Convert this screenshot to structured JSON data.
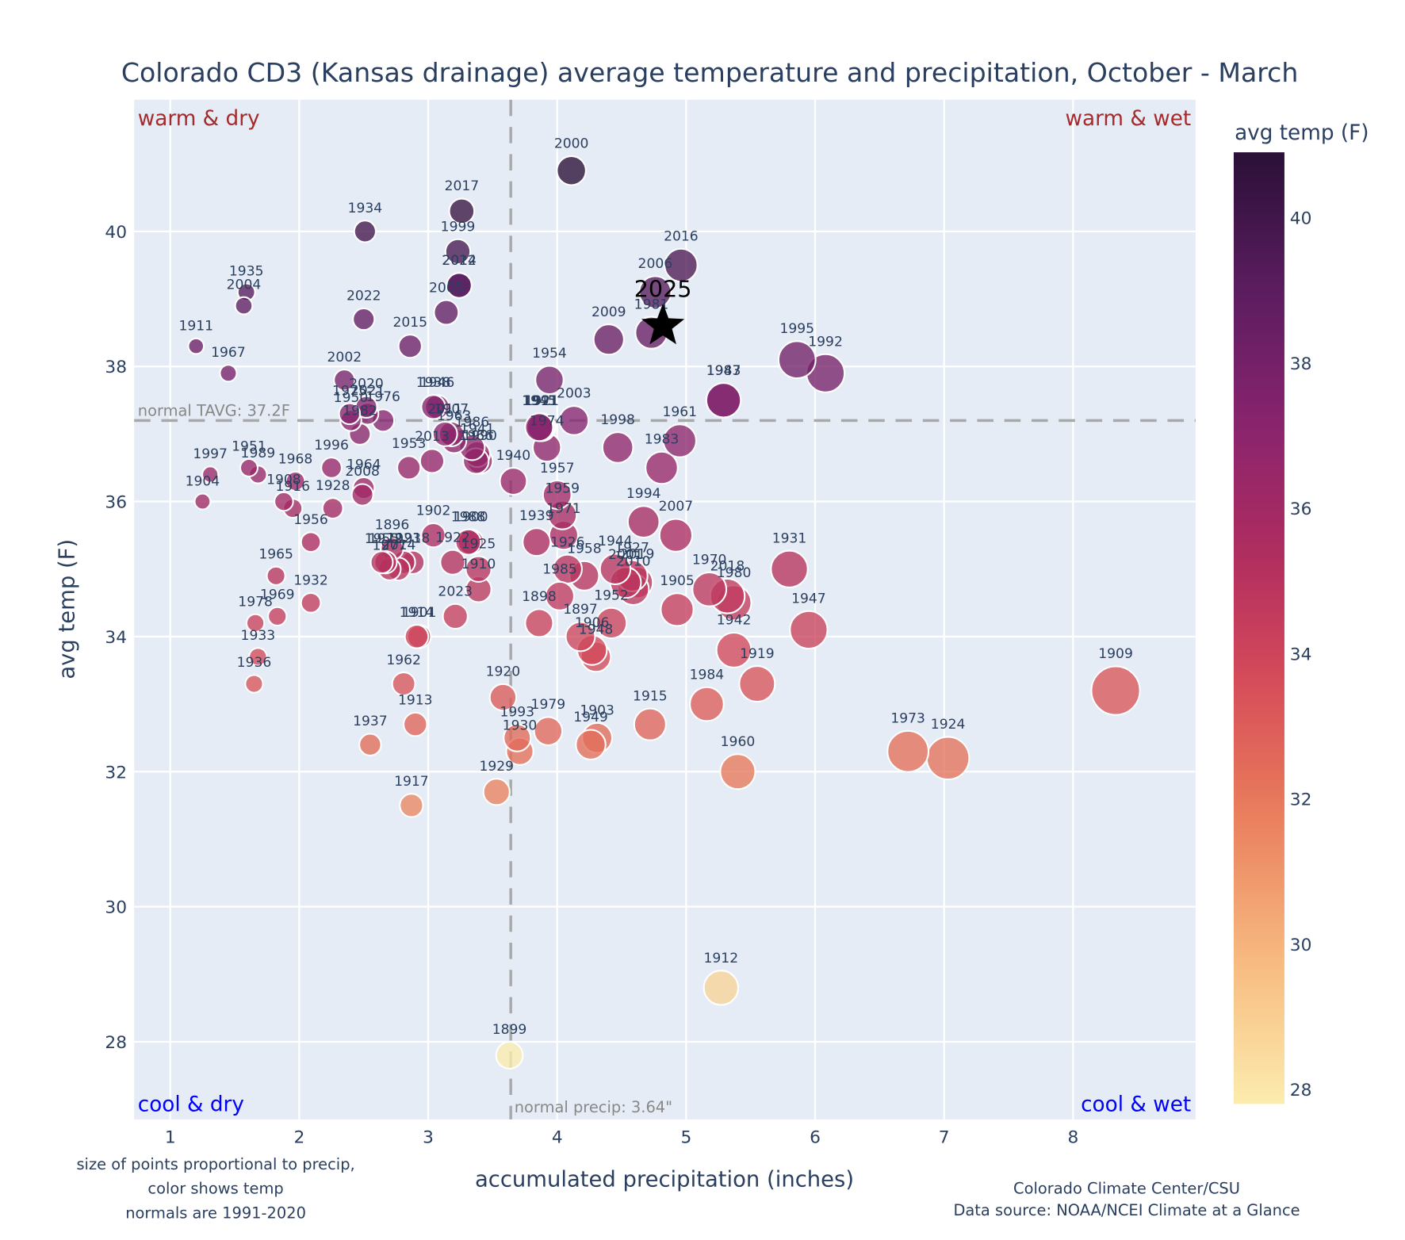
{
  "chart_data": {
    "type": "scatter",
    "title": "Colorado CD3 (Kansas drainage) average temperature and precipitation, October - March",
    "xlabel": "accumulated precipitation (inches)",
    "ylabel": "avg temp (F)",
    "xlim": [
      0.72,
      8.95
    ],
    "ylim": [
      26.85,
      41.95
    ],
    "x_ticks": [
      1,
      2,
      3,
      4,
      5,
      6,
      7,
      8
    ],
    "y_ticks": [
      28,
      30,
      32,
      34,
      36,
      38,
      40
    ],
    "grid": true,
    "size_encoding": "precip",
    "color_encoding": "avg temp",
    "colorscale": "magma-like (light yellow = cool, dark purple = warm)",
    "colorbar": {
      "title": "avg temp (F)",
      "range": [
        27.8,
        40.9
      ],
      "ticks": [
        28,
        30,
        32,
        34,
        36,
        38,
        40
      ],
      "placement": "right"
    },
    "reference_lines": {
      "normal_temp": 37.2,
      "normal_temp_label": "normal TAVG: 37.2F",
      "normal_precip": 3.64,
      "normal_precip_label": "normal precip: 3.64\""
    },
    "quadrant_labels": {
      "top_left": "warm & dry",
      "top_right": "warm & wet",
      "bottom_left": "cool & dry",
      "bottom_right": "cool & wet"
    },
    "highlight": {
      "year": "2025",
      "precip": 4.82,
      "temp": 38.6,
      "marker": "star"
    },
    "points": [
      {
        "year": "1896",
        "precip": 2.72,
        "temp": 35.3
      },
      {
        "year": "1897",
        "precip": 4.18,
        "temp": 34.0
      },
      {
        "year": "1898",
        "precip": 3.86,
        "temp": 34.2
      },
      {
        "year": "1899",
        "precip": 3.63,
        "temp": 27.8
      },
      {
        "year": "1900",
        "precip": 3.33,
        "temp": 35.4
      },
      {
        "year": "1901",
        "precip": 2.93,
        "temp": 34.0
      },
      {
        "year": "1902",
        "precip": 3.04,
        "temp": 35.5
      },
      {
        "year": "1903",
        "precip": 4.31,
        "temp": 32.5
      },
      {
        "year": "1904",
        "precip": 1.25,
        "temp": 36.0
      },
      {
        "year": "1905",
        "precip": 4.93,
        "temp": 34.4
      },
      {
        "year": "1906",
        "precip": 4.27,
        "temp": 33.8
      },
      {
        "year": "1907",
        "precip": 3.18,
        "temp": 37.0
      },
      {
        "year": "1908",
        "precip": 1.88,
        "temp": 36.0
      },
      {
        "year": "1909",
        "precip": 8.33,
        "temp": 33.2
      },
      {
        "year": "1910",
        "precip": 3.39,
        "temp": 34.7
      },
      {
        "year": "1911",
        "precip": 1.2,
        "temp": 38.3
      },
      {
        "year": "1912",
        "precip": 5.27,
        "temp": 28.8
      },
      {
        "year": "1913",
        "precip": 2.9,
        "temp": 32.7
      },
      {
        "year": "1914",
        "precip": 2.91,
        "temp": 34.0
      },
      {
        "year": "1915",
        "precip": 4.72,
        "temp": 32.7
      },
      {
        "year": "1916",
        "precip": 1.95,
        "temp": 35.9
      },
      {
        "year": "1917",
        "precip": 2.87,
        "temp": 31.5
      },
      {
        "year": "1918",
        "precip": 2.88,
        "temp": 35.1
      },
      {
        "year": "1919",
        "precip": 5.55,
        "temp": 33.3
      },
      {
        "year": "1920",
        "precip": 3.58,
        "temp": 33.1
      },
      {
        "year": "1921",
        "precip": 3.88,
        "temp": 37.1
      },
      {
        "year": "1922",
        "precip": 3.19,
        "temp": 35.1
      },
      {
        "year": "1923",
        "precip": 2.81,
        "temp": 35.1
      },
      {
        "year": "1924",
        "precip": 7.03,
        "temp": 32.2
      },
      {
        "year": "1925",
        "precip": 3.39,
        "temp": 35.0
      },
      {
        "year": "1926",
        "precip": 4.08,
        "temp": 35.0
      },
      {
        "year": "1927",
        "precip": 4.58,
        "temp": 34.9
      },
      {
        "year": "1928",
        "precip": 2.26,
        "temp": 35.9
      },
      {
        "year": "1929",
        "precip": 3.53,
        "temp": 31.7
      },
      {
        "year": "1930",
        "precip": 3.71,
        "temp": 32.3
      },
      {
        "year": "1931",
        "precip": 5.8,
        "temp": 35.0
      },
      {
        "year": "1932",
        "precip": 2.09,
        "temp": 34.5
      },
      {
        "year": "1933",
        "precip": 1.68,
        "temp": 33.7
      },
      {
        "year": "1934",
        "precip": 2.51,
        "temp": 40.0
      },
      {
        "year": "1935",
        "precip": 1.59,
        "temp": 39.1
      },
      {
        "year": "1936",
        "precip": 1.65,
        "temp": 33.3
      },
      {
        "year": "1937",
        "precip": 2.55,
        "temp": 32.4
      },
      {
        "year": "1938",
        "precip": 3.04,
        "temp": 37.4
      },
      {
        "year": "1939",
        "precip": 3.84,
        "temp": 35.4
      },
      {
        "year": "1940",
        "precip": 3.66,
        "temp": 36.3
      },
      {
        "year": "1941",
        "precip": 3.38,
        "temp": 36.7
      },
      {
        "year": "1942",
        "precip": 5.37,
        "temp": 33.8
      },
      {
        "year": "1943",
        "precip": 5.29,
        "temp": 37.5
      },
      {
        "year": "1944",
        "precip": 4.45,
        "temp": 35.0
      },
      {
        "year": "1945",
        "precip": 3.86,
        "temp": 37.1
      },
      {
        "year": "1946",
        "precip": 3.07,
        "temp": 37.4
      },
      {
        "year": "1947",
        "precip": 5.95,
        "temp": 34.1
      },
      {
        "year": "1948",
        "precip": 4.3,
        "temp": 33.7
      },
      {
        "year": "1949",
        "precip": 4.26,
        "temp": 32.4
      },
      {
        "year": "1950",
        "precip": 2.4,
        "temp": 37.2
      },
      {
        "year": "1951",
        "precip": 1.61,
        "temp": 36.5
      },
      {
        "year": "1952",
        "precip": 4.42,
        "temp": 34.2
      },
      {
        "year": "1953",
        "precip": 2.85,
        "temp": 36.5
      },
      {
        "year": "1954",
        "precip": 3.94,
        "temp": 37.8
      },
      {
        "year": "1955",
        "precip": 2.64,
        "temp": 35.1
      },
      {
        "year": "1956",
        "precip": 2.09,
        "temp": 35.4
      },
      {
        "year": "1957",
        "precip": 4.0,
        "temp": 36.1
      },
      {
        "year": "1958",
        "precip": 4.21,
        "temp": 34.9
      },
      {
        "year": "1959",
        "precip": 4.04,
        "temp": 35.8
      },
      {
        "year": "1960",
        "precip": 5.4,
        "temp": 32.0
      },
      {
        "year": "1961",
        "precip": 4.95,
        "temp": 36.9
      },
      {
        "year": "1962",
        "precip": 2.81,
        "temp": 33.3
      },
      {
        "year": "1963",
        "precip": 3.2,
        "temp": 36.9
      },
      {
        "year": "1964",
        "precip": 2.5,
        "temp": 36.2
      },
      {
        "year": "1965",
        "precip": 1.82,
        "temp": 34.9
      },
      {
        "year": "1966",
        "precip": 3.37,
        "temp": 36.6
      },
      {
        "year": "1967",
        "precip": 1.45,
        "temp": 37.9
      },
      {
        "year": "1968",
        "precip": 1.97,
        "temp": 36.3
      },
      {
        "year": "1969",
        "precip": 1.83,
        "temp": 34.3
      },
      {
        "year": "1970",
        "precip": 5.18,
        "temp": 34.7
      },
      {
        "year": "1971",
        "precip": 4.05,
        "temp": 35.5
      },
      {
        "year": "1972",
        "precip": 2.67,
        "temp": 35.1
      },
      {
        "year": "1973",
        "precip": 6.72,
        "temp": 32.3
      },
      {
        "year": "1974",
        "precip": 3.92,
        "temp": 36.8
      },
      {
        "year": "1975",
        "precip": 2.39,
        "temp": 37.3
      },
      {
        "year": "1976",
        "precip": 2.65,
        "temp": 37.2
      },
      {
        "year": "1977",
        "precip": 2.7,
        "temp": 35.0
      },
      {
        "year": "1978",
        "precip": 1.66,
        "temp": 34.2
      },
      {
        "year": "1979",
        "precip": 3.93,
        "temp": 32.6
      },
      {
        "year": "1980",
        "precip": 5.37,
        "temp": 34.5
      },
      {
        "year": "1981",
        "precip": 4.73,
        "temp": 38.5
      },
      {
        "year": "1982",
        "precip": 2.47,
        "temp": 37.0
      },
      {
        "year": "1983",
        "precip": 4.81,
        "temp": 36.5
      },
      {
        "year": "1984",
        "precip": 5.16,
        "temp": 33.0
      },
      {
        "year": "1985",
        "precip": 4.02,
        "temp": 34.6
      },
      {
        "year": "1986",
        "precip": 3.34,
        "temp": 36.8
      },
      {
        "year": "1987",
        "precip": 5.29,
        "temp": 37.5
      },
      {
        "year": "1988",
        "precip": 3.31,
        "temp": 35.4
      },
      {
        "year": "1989",
        "precip": 1.68,
        "temp": 36.4
      },
      {
        "year": "1990",
        "precip": 3.4,
        "temp": 36.6
      },
      {
        "year": "1991",
        "precip": 3.87,
        "temp": 37.1
      },
      {
        "year": "1992",
        "precip": 6.08,
        "temp": 37.9
      },
      {
        "year": "1993",
        "precip": 3.69,
        "temp": 32.5
      },
      {
        "year": "1994",
        "precip": 4.67,
        "temp": 35.7
      },
      {
        "year": "1995",
        "precip": 5.86,
        "temp": 38.1
      },
      {
        "year": "1996",
        "precip": 2.25,
        "temp": 36.5
      },
      {
        "year": "1997",
        "precip": 1.31,
        "temp": 36.4
      },
      {
        "year": "1998",
        "precip": 4.47,
        "temp": 36.8
      },
      {
        "year": "1999",
        "precip": 3.23,
        "temp": 39.7
      },
      {
        "year": "2000",
        "precip": 4.11,
        "temp": 40.9
      },
      {
        "year": "2001",
        "precip": 4.53,
        "temp": 34.8
      },
      {
        "year": "2002",
        "precip": 2.35,
        "temp": 37.8
      },
      {
        "year": "2003",
        "precip": 4.13,
        "temp": 37.2
      },
      {
        "year": "2004",
        "precip": 1.57,
        "temp": 38.9
      },
      {
        "year": "2005",
        "precip": 3.14,
        "temp": 38.8
      },
      {
        "year": "2006",
        "precip": 4.76,
        "temp": 39.1
      },
      {
        "year": "2007",
        "precip": 4.92,
        "temp": 35.5
      },
      {
        "year": "2008",
        "precip": 2.49,
        "temp": 36.1
      },
      {
        "year": "2009",
        "precip": 4.4,
        "temp": 38.4
      },
      {
        "year": "2010",
        "precip": 4.59,
        "temp": 34.7
      },
      {
        "year": "2011",
        "precip": 3.13,
        "temp": 37.0
      },
      {
        "year": "2012",
        "precip": 3.24,
        "temp": 39.2
      },
      {
        "year": "2013",
        "precip": 3.03,
        "temp": 36.6
      },
      {
        "year": "2014",
        "precip": 2.77,
        "temp": 35.0
      },
      {
        "year": "2015",
        "precip": 2.86,
        "temp": 38.3
      },
      {
        "year": "2016",
        "precip": 4.96,
        "temp": 39.5
      },
      {
        "year": "2017",
        "precip": 3.26,
        "temp": 40.3
      },
      {
        "year": "2018",
        "precip": 5.32,
        "temp": 34.6
      },
      {
        "year": "2019",
        "precip": 4.62,
        "temp": 34.8
      },
      {
        "year": "2020",
        "precip": 2.52,
        "temp": 37.4
      },
      {
        "year": "2021",
        "precip": 2.53,
        "temp": 37.3
      },
      {
        "year": "2022",
        "precip": 2.5,
        "temp": 38.7
      },
      {
        "year": "2023",
        "precip": 3.21,
        "temp": 34.3
      },
      {
        "year": "2024",
        "precip": 3.24,
        "temp": 39.2
      }
    ]
  },
  "notes": {
    "left_line1": "size of points proportional to precip,",
    "left_line2": "color shows temp",
    "left_line3": "normals are 1991-2020",
    "right_line1": "Colorado Climate Center/CSU",
    "right_line2": "Data source: NOAA/NCEI Climate at a Glance"
  },
  "colors": {
    "plot_bg": "#e5ecf6",
    "grid": "#ffffff",
    "text": "#2a3f5f",
    "quad_warm": "#a52a2a",
    "quad_cool": "#0000ff",
    "ref_line": "#a9a9a9"
  }
}
